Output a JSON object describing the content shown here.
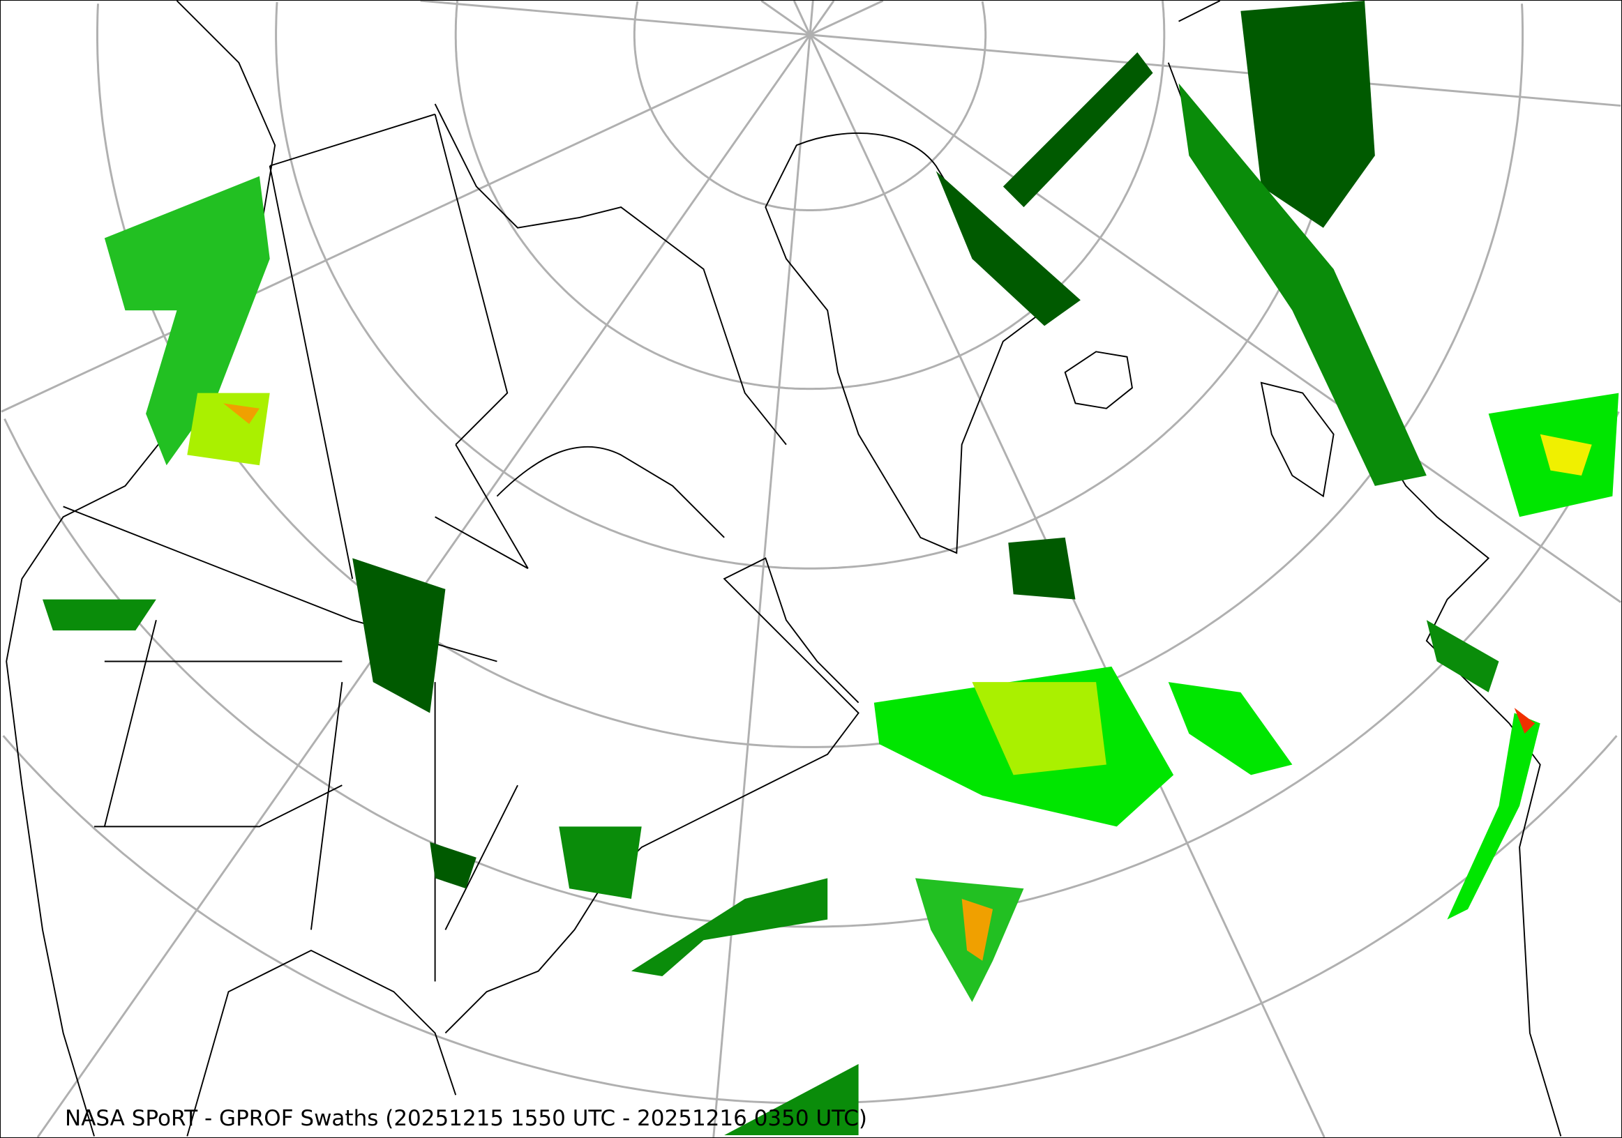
{
  "map": {
    "caption": "NASA SPoRT - GPROF Swaths (20251215 1550 UTC - 20251216 0350 UTC)",
    "projection": "north-polar-stereographic",
    "graticule_color": "#b0b0b0",
    "coastline_color": "#000000",
    "precip_colors": [
      "#005a00",
      "#0a8c0a",
      "#22c022",
      "#00e600",
      "#aaf000",
      "#f0f000",
      "#f0a000",
      "#f03000",
      "#c00000"
    ]
  }
}
